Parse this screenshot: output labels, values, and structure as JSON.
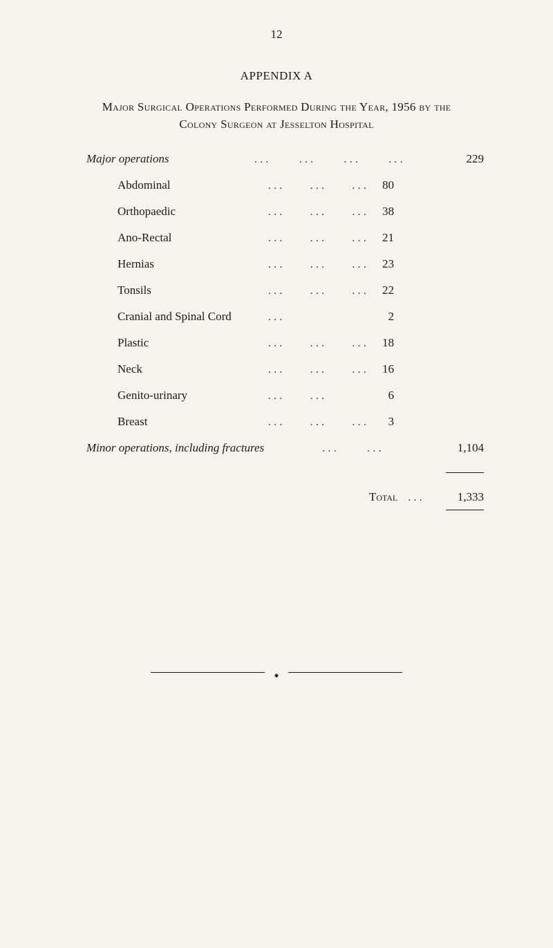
{
  "page_number": "12",
  "appendix_title": "APPENDIX A",
  "main_title_line1": "Major Surgical Operations Performed During the Year, 1956 by the",
  "main_title_line2": "Colony Surgeon at Jesselton Hospital",
  "major_operations": {
    "label": "Major operations",
    "total": "229",
    "items": [
      {
        "label": "Abdominal",
        "value": "80"
      },
      {
        "label": "Orthopaedic",
        "value": "38"
      },
      {
        "label": "Ano-Rectal",
        "value": "21"
      },
      {
        "label": "Hernias",
        "value": "23"
      },
      {
        "label": "Tonsils",
        "value": "22"
      },
      {
        "label": "Cranial and Spinal Cord",
        "value": "2"
      },
      {
        "label": "Plastic",
        "value": "18"
      },
      {
        "label": "Neck",
        "value": "16"
      },
      {
        "label": "Genito-urinary",
        "value": "6"
      },
      {
        "label": "Breast",
        "value": "3"
      }
    ]
  },
  "minor_operations": {
    "label": "Minor operations, including fractures",
    "total": "1,104"
  },
  "grand_total": {
    "label": "Total",
    "value": "1,333"
  },
  "colors": {
    "background": "#f5f3ec",
    "text": "#1a1a1a"
  },
  "typography": {
    "body_fontsize": 17,
    "font_family": "Times New Roman"
  }
}
